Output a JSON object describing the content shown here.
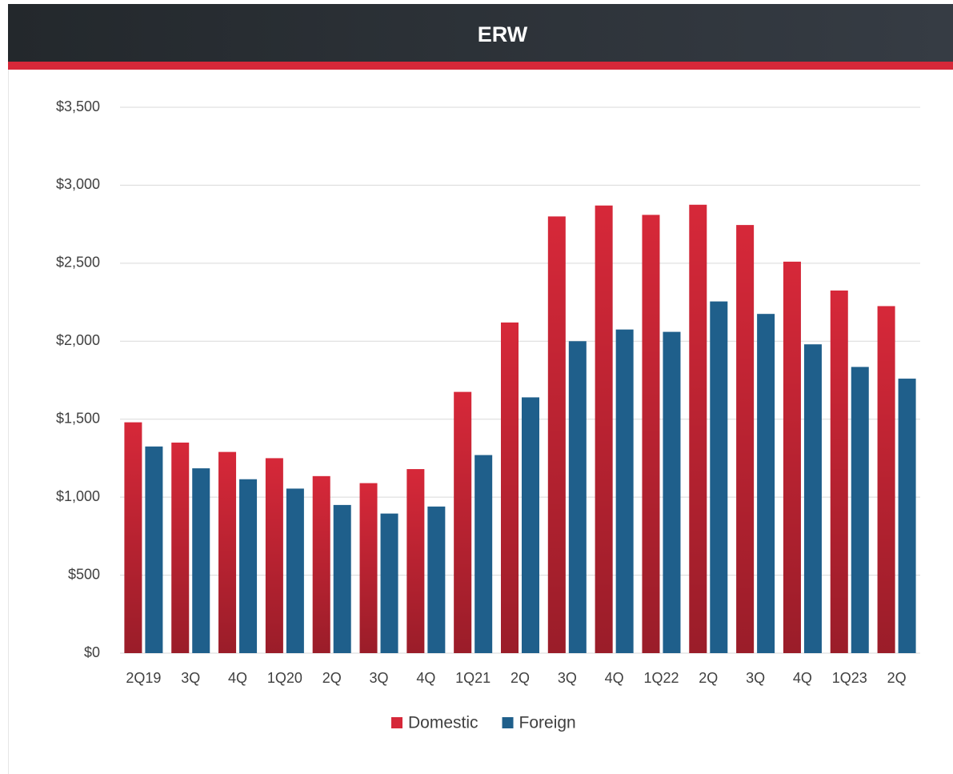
{
  "chart_data": {
    "type": "bar",
    "title": "ERW",
    "categories": [
      "2Q19",
      "3Q",
      "4Q",
      "1Q20",
      "2Q",
      "3Q",
      "4Q",
      "1Q21",
      "2Q",
      "3Q",
      "4Q",
      "1Q22",
      "2Q",
      "3Q",
      "4Q",
      "1Q23",
      "2Q"
    ],
    "series": [
      {
        "name": "Domestic",
        "color": "#d62839",
        "gradient": true,
        "values": [
          1480,
          1350,
          1290,
          1250,
          1135,
          1090,
          1180,
          1675,
          2120,
          2800,
          2870,
          2810,
          2875,
          2745,
          2510,
          2325,
          2225
        ]
      },
      {
        "name": "Foreign",
        "color": "#1f5f8b",
        "values": [
          1325,
          1185,
          1115,
          1055,
          950,
          895,
          940,
          1270,
          1640,
          2000,
          2075,
          2060,
          2255,
          2175,
          1980,
          1835,
          1760
        ]
      }
    ],
    "ylim": [
      0,
      3500
    ],
    "yticks": [
      {
        "value": 0,
        "label": "$0"
      },
      {
        "value": 500,
        "label": "$500"
      },
      {
        "value": 1000,
        "label": "$1,000"
      },
      {
        "value": 1500,
        "label": "$1,500"
      },
      {
        "value": 2000,
        "label": "$2,000"
      },
      {
        "value": 2500,
        "label": "$2,500"
      },
      {
        "value": 3000,
        "label": "$3,000"
      },
      {
        "value": 3500,
        "label": "$3,500"
      }
    ],
    "grid": true,
    "legend": "bottom"
  }
}
